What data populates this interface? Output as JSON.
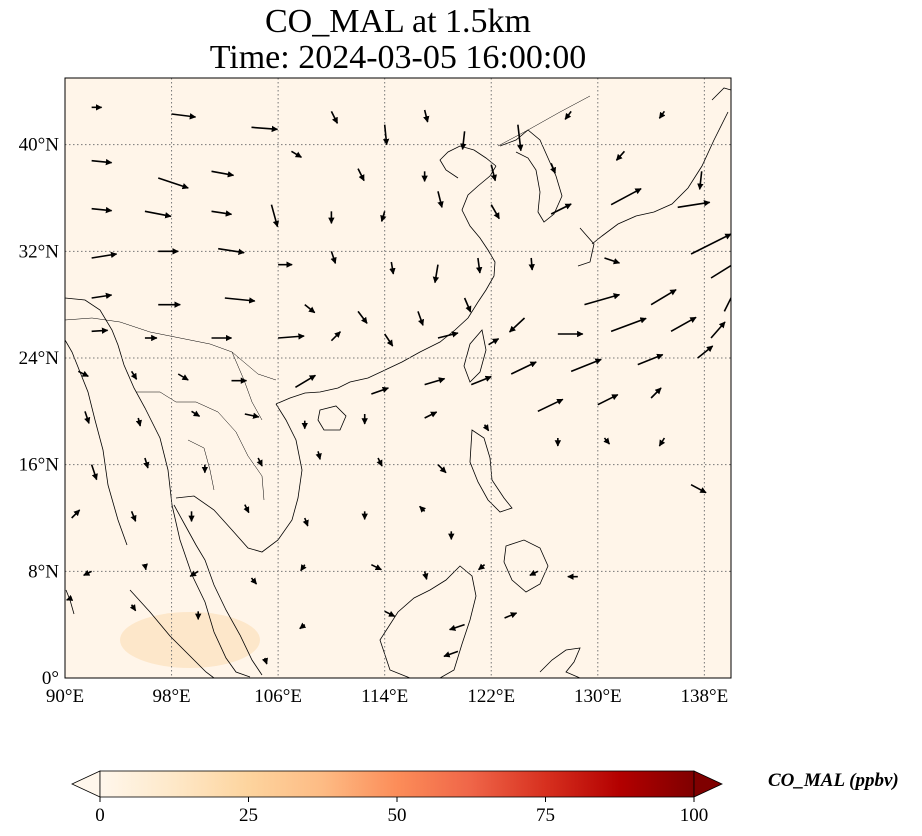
{
  "title": {
    "line1": "CO_MAL at 1.5km",
    "line2": "Time: 2024-03-05 16:00:00"
  },
  "map": {
    "region": "East and Southeast Asia",
    "lon_range": [
      90,
      140
    ],
    "lat_range": [
      0,
      45
    ],
    "lon_ticks": [
      "90°E",
      "98°E",
      "106°E",
      "114°E",
      "122°E",
      "130°E",
      "138°E"
    ],
    "lat_ticks": [
      "0°",
      "8°N",
      "16°N",
      "24°N",
      "32°N",
      "40°N"
    ],
    "gridlines": "dotted",
    "background_color": "#fff5e9",
    "coastline_color": "#000000",
    "wind_vectors": [
      {
        "lon": 92,
        "lat": 42.8,
        "u": 1,
        "v": 0
      },
      {
        "lon": 98,
        "lat": 42.3,
        "u": 2.4,
        "v": -0.3
      },
      {
        "lon": 104,
        "lat": 41.3,
        "u": 2.6,
        "v": -0.2
      },
      {
        "lon": 110,
        "lat": 42.5,
        "u": 0.6,
        "v": -1.2
      },
      {
        "lon": 114,
        "lat": 41.5,
        "u": 0.2,
        "v": -2
      },
      {
        "lon": 117,
        "lat": 42.6,
        "u": 0.3,
        "v": -1.2
      },
      {
        "lon": 120,
        "lat": 41,
        "u": -0.2,
        "v": -1.8
      },
      {
        "lon": 124,
        "lat": 41.5,
        "u": 0.3,
        "v": -2.6
      },
      {
        "lon": 128,
        "lat": 42.5,
        "u": -0.6,
        "v": -0.8
      },
      {
        "lon": 135,
        "lat": 42.5,
        "u": -0.5,
        "v": -0.7
      },
      {
        "lon": 92,
        "lat": 38.8,
        "u": 2,
        "v": -0.2
      },
      {
        "lon": 97,
        "lat": 37.5,
        "u": 3,
        "v": -1
      },
      {
        "lon": 101,
        "lat": 38,
        "u": 2.2,
        "v": -0.4
      },
      {
        "lon": 107,
        "lat": 39.5,
        "u": 1,
        "v": -0.6
      },
      {
        "lon": 112,
        "lat": 38.2,
        "u": 0.6,
        "v": -1.2
      },
      {
        "lon": 117,
        "lat": 38,
        "u": 0,
        "v": -1
      },
      {
        "lon": 122,
        "lat": 38.5,
        "u": 0.4,
        "v": -1.6
      },
      {
        "lon": 126.5,
        "lat": 38.6,
        "u": 0.4,
        "v": -1
      },
      {
        "lon": 132,
        "lat": 39.5,
        "u": -0.8,
        "v": -0.9
      },
      {
        "lon": 137.8,
        "lat": 38,
        "u": -0.2,
        "v": -1.8
      },
      {
        "lon": 92,
        "lat": 35.2,
        "u": 2,
        "v": -0.2
      },
      {
        "lon": 96,
        "lat": 35,
        "u": 2.6,
        "v": -0.5
      },
      {
        "lon": 101,
        "lat": 35,
        "u": 2,
        "v": -0.3
      },
      {
        "lon": 105.5,
        "lat": 35.5,
        "u": 0.6,
        "v": -2.2
      },
      {
        "lon": 110,
        "lat": 35,
        "u": 0,
        "v": -1.2
      },
      {
        "lon": 114,
        "lat": 35,
        "u": -0.3,
        "v": -1
      },
      {
        "lon": 118,
        "lat": 36.5,
        "u": 0.4,
        "v": -1.6
      },
      {
        "lon": 122,
        "lat": 35.5,
        "u": 0.8,
        "v": -1.4
      },
      {
        "lon": 126.5,
        "lat": 34.8,
        "u": 2,
        "v": 1
      },
      {
        "lon": 131,
        "lat": 35.5,
        "u": 3,
        "v": 1.6
      },
      {
        "lon": 136,
        "lat": 35.3,
        "u": 3.2,
        "v": 0.5
      },
      {
        "lon": 92,
        "lat": 31.5,
        "u": 2.5,
        "v": 0.4
      },
      {
        "lon": 97,
        "lat": 32,
        "u": 2,
        "v": 0
      },
      {
        "lon": 101.5,
        "lat": 32.2,
        "u": 2.6,
        "v": -0.4
      },
      {
        "lon": 106,
        "lat": 31,
        "u": 1.4,
        "v": 0
      },
      {
        "lon": 110,
        "lat": 32,
        "u": 0.4,
        "v": -1.2
      },
      {
        "lon": 114.5,
        "lat": 31.2,
        "u": 0.2,
        "v": -1.2
      },
      {
        "lon": 118,
        "lat": 31,
        "u": -0.3,
        "v": -1.8
      },
      {
        "lon": 121,
        "lat": 31.5,
        "u": 0.2,
        "v": -1.5
      },
      {
        "lon": 125,
        "lat": 31.5,
        "u": 0.1,
        "v": -1.2
      },
      {
        "lon": 130.5,
        "lat": 31.5,
        "u": 1.5,
        "v": -0.5
      },
      {
        "lon": 137,
        "lat": 31.8,
        "u": 4,
        "v": 2
      },
      {
        "lon": 138.5,
        "lat": 30,
        "u": 4,
        "v": 2.5
      },
      {
        "lon": 92,
        "lat": 28.5,
        "u": 2,
        "v": 0.3
      },
      {
        "lon": 97,
        "lat": 28,
        "u": 2.2,
        "v": 0
      },
      {
        "lon": 102,
        "lat": 28.5,
        "u": 3,
        "v": -0.3
      },
      {
        "lon": 108,
        "lat": 28,
        "u": 1,
        "v": -0.8
      },
      {
        "lon": 112,
        "lat": 27.5,
        "u": 0.9,
        "v": -1.2
      },
      {
        "lon": 116.5,
        "lat": 27.5,
        "u": 0.5,
        "v": -1.4
      },
      {
        "lon": 120,
        "lat": 28.5,
        "u": 0.6,
        "v": -1.4
      },
      {
        "lon": 124.5,
        "lat": 27,
        "u": -1.5,
        "v": -1.4
      },
      {
        "lon": 129,
        "lat": 28,
        "u": 3.5,
        "v": 1
      },
      {
        "lon": 134,
        "lat": 28,
        "u": 2.5,
        "v": 1.5
      },
      {
        "lon": 139.5,
        "lat": 27.5,
        "u": 1.5,
        "v": 3
      },
      {
        "lon": 92,
        "lat": 26,
        "u": 1.6,
        "v": 0.1
      },
      {
        "lon": 96,
        "lat": 25.5,
        "u": 1.2,
        "v": 0
      },
      {
        "lon": 101,
        "lat": 25.5,
        "u": 2,
        "v": 0
      },
      {
        "lon": 106,
        "lat": 25.5,
        "u": 2.6,
        "v": 0.2
      },
      {
        "lon": 110,
        "lat": 25.3,
        "u": 0.9,
        "v": 0.9
      },
      {
        "lon": 114,
        "lat": 25.8,
        "u": 0.8,
        "v": -1.2
      },
      {
        "lon": 118,
        "lat": 25.5,
        "u": 2,
        "v": 0.5
      },
      {
        "lon": 121.8,
        "lat": 25,
        "u": 1,
        "v": 0.6
      },
      {
        "lon": 127,
        "lat": 25.8,
        "u": 2.5,
        "v": 0
      },
      {
        "lon": 131,
        "lat": 26,
        "u": 3.5,
        "v": 1.3
      },
      {
        "lon": 135.5,
        "lat": 26,
        "u": 2.5,
        "v": 1.4
      },
      {
        "lon": 138.5,
        "lat": 25.5,
        "u": 1.4,
        "v": 1.6
      },
      {
        "lon": 91,
        "lat": 23,
        "u": 1,
        "v": -0.5
      },
      {
        "lon": 95,
        "lat": 23,
        "u": 0.5,
        "v": -0.8
      },
      {
        "lon": 98.5,
        "lat": 22.8,
        "u": 1,
        "v": -0.6
      },
      {
        "lon": 102.5,
        "lat": 22.3,
        "u": 1.5,
        "v": 0
      },
      {
        "lon": 107.3,
        "lat": 21.8,
        "u": 2,
        "v": 1.2
      },
      {
        "lon": 113,
        "lat": 21.3,
        "u": 1.7,
        "v": 0.6
      },
      {
        "lon": 117,
        "lat": 22,
        "u": 2,
        "v": 0.6
      },
      {
        "lon": 120.5,
        "lat": 22,
        "u": 2,
        "v": 0.8
      },
      {
        "lon": 123.5,
        "lat": 22.8,
        "u": 2.5,
        "v": 1.2
      },
      {
        "lon": 128,
        "lat": 23,
        "u": 3,
        "v": 1.2
      },
      {
        "lon": 133,
        "lat": 23.5,
        "u": 2.5,
        "v": 1
      },
      {
        "lon": 137.5,
        "lat": 24,
        "u": 1.5,
        "v": 1.2
      },
      {
        "lon": 91.5,
        "lat": 20,
        "u": 0.4,
        "v": -1.2
      },
      {
        "lon": 95.5,
        "lat": 19.5,
        "u": 0.2,
        "v": -0.8
      },
      {
        "lon": 99.5,
        "lat": 20,
        "u": 0.8,
        "v": -0.5
      },
      {
        "lon": 103.5,
        "lat": 19.8,
        "u": 1.4,
        "v": -0.3
      },
      {
        "lon": 108,
        "lat": 19.3,
        "u": 0,
        "v": -0.8
      },
      {
        "lon": 112.5,
        "lat": 19.8,
        "u": 0,
        "v": -1
      },
      {
        "lon": 117,
        "lat": 19.5,
        "u": 1.2,
        "v": 0.6
      },
      {
        "lon": 121.5,
        "lat": 19,
        "u": 0.4,
        "v": -0.6
      },
      {
        "lon": 125.5,
        "lat": 20,
        "u": 2.5,
        "v": 1.2
      },
      {
        "lon": 130,
        "lat": 20.5,
        "u": 2,
        "v": 1
      },
      {
        "lon": 134,
        "lat": 21,
        "u": 1,
        "v": 1
      },
      {
        "lon": 92,
        "lat": 16,
        "u": 0.5,
        "v": -1.5
      },
      {
        "lon": 96,
        "lat": 16.5,
        "u": 0.3,
        "v": -1
      },
      {
        "lon": 100.5,
        "lat": 16,
        "u": 0,
        "v": -0.8
      },
      {
        "lon": 104.5,
        "lat": 16.5,
        "u": 0.4,
        "v": -0.8
      },
      {
        "lon": 109,
        "lat": 17,
        "u": 0.2,
        "v": -0.8
      },
      {
        "lon": 113.5,
        "lat": 16.5,
        "u": 0.4,
        "v": -0.8
      },
      {
        "lon": 118,
        "lat": 16,
        "u": 0.8,
        "v": -0.8
      },
      {
        "lon": 127,
        "lat": 18,
        "u": 0,
        "v": -0.8
      },
      {
        "lon": 130.5,
        "lat": 18,
        "u": 0.5,
        "v": -0.6
      },
      {
        "lon": 135,
        "lat": 18,
        "u": -0.5,
        "v": -0.8
      },
      {
        "lon": 137,
        "lat": 14.5,
        "u": 1.5,
        "v": -0.8
      },
      {
        "lon": 90.5,
        "lat": 12,
        "u": 0.8,
        "v": 0.8
      },
      {
        "lon": 95,
        "lat": 12.5,
        "u": 0.4,
        "v": -1
      },
      {
        "lon": 99.5,
        "lat": 12.5,
        "u": 0,
        "v": -1
      },
      {
        "lon": 103.5,
        "lat": 13,
        "u": 0.4,
        "v": -0.8
      },
      {
        "lon": 108,
        "lat": 12,
        "u": 0.3,
        "v": -0.8
      },
      {
        "lon": 112.5,
        "lat": 12.5,
        "u": 0,
        "v": -0.8
      },
      {
        "lon": 117,
        "lat": 12.5,
        "u": -0.5,
        "v": 0.5
      },
      {
        "lon": 119,
        "lat": 11,
        "u": 0,
        "v": -0.8
      },
      {
        "lon": 92,
        "lat": 8,
        "u": -0.8,
        "v": -0.4
      },
      {
        "lon": 96,
        "lat": 8.5,
        "u": 0.1,
        "v": -0.5
      },
      {
        "lon": 100,
        "lat": 8,
        "u": -0.8,
        "v": -0.5
      },
      {
        "lon": 104,
        "lat": 7.5,
        "u": 0.5,
        "v": -0.6
      },
      {
        "lon": 108,
        "lat": 8.5,
        "u": -0.4,
        "v": -0.6
      },
      {
        "lon": 113,
        "lat": 8.5,
        "u": 1,
        "v": -0.5
      },
      {
        "lon": 117,
        "lat": 8,
        "u": 0.2,
        "v": -0.8
      },
      {
        "lon": 121.5,
        "lat": 8.5,
        "u": -0.6,
        "v": -0.5
      },
      {
        "lon": 125.5,
        "lat": 8,
        "u": -0.8,
        "v": -0.4
      },
      {
        "lon": 128.5,
        "lat": 7.6,
        "u": -1,
        "v": 0
      },
      {
        "lon": 90.5,
        "lat": 6,
        "u": -0.5,
        "v": -0.2
      },
      {
        "lon": 95,
        "lat": 5.5,
        "u": 0.4,
        "v": -0.6
      },
      {
        "lon": 100,
        "lat": 5,
        "u": 0,
        "v": -0.8
      },
      {
        "lon": 108,
        "lat": 4,
        "u": -0.5,
        "v": -0.4
      },
      {
        "lon": 114,
        "lat": 5,
        "u": 1,
        "v": -0.5
      },
      {
        "lon": 120,
        "lat": 4,
        "u": -1.5,
        "v": -0.5
      },
      {
        "lon": 123,
        "lat": 4.5,
        "u": 1.2,
        "v": 0.5
      },
      {
        "lon": 119.5,
        "lat": 2,
        "u": -1.4,
        "v": -0.5
      },
      {
        "lon": 105,
        "lat": 1.5,
        "u": 0.2,
        "v": -0.6
      }
    ]
  },
  "colorbar": {
    "label": "CO_MAL (ppbv)",
    "colormap": "OrRd",
    "range": [
      0,
      100
    ],
    "extend": "both",
    "tick_labels": [
      "0",
      "25",
      "50",
      "75",
      "100"
    ],
    "colors": [
      "#fff7ec",
      "#fee8c8",
      "#fdd49e",
      "#fdbb84",
      "#fc8d59",
      "#ef6548",
      "#d7301f",
      "#b30000",
      "#7f0000"
    ]
  }
}
